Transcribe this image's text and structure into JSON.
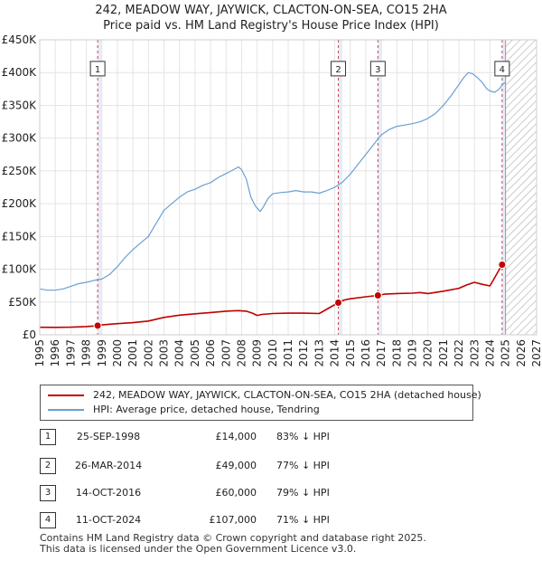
{
  "title_line1": "242, MEADOW WAY, JAYWICK, CLACTON-ON-SEA, CO15 2HA",
  "title_line2": "Price paid vs. HM Land Registry's House Price Index (HPI)",
  "chart_data": {
    "type": "line",
    "xlim": [
      1995,
      2027
    ],
    "ylim": [
      0,
      450000
    ],
    "y_ticks": [
      {
        "value": 0,
        "label": "£0"
      },
      {
        "value": 50000,
        "label": "£50K"
      },
      {
        "value": 100000,
        "label": "£100K"
      },
      {
        "value": 150000,
        "label": "£150K"
      },
      {
        "value": 200000,
        "label": "£200K"
      },
      {
        "value": 250000,
        "label": "£250K"
      },
      {
        "value": 300000,
        "label": "£300K"
      },
      {
        "value": 350000,
        "label": "£350K"
      },
      {
        "value": 400000,
        "label": "£400K"
      },
      {
        "value": 450000,
        "label": "£450K"
      }
    ],
    "x_ticks": [
      "1995",
      "1996",
      "1997",
      "1998",
      "1999",
      "2000",
      "2001",
      "2002",
      "2003",
      "2004",
      "2005",
      "2006",
      "2007",
      "2008",
      "2009",
      "2010",
      "2011",
      "2012",
      "2013",
      "2014",
      "2015",
      "2016",
      "2017",
      "2018",
      "2019",
      "2020",
      "2021",
      "2022",
      "2023",
      "2024",
      "2025",
      "2026",
      "2027"
    ],
    "forecast_start": 2025.0,
    "sale_highlight_ranges": [
      [
        1998.73,
        1999.0
      ],
      [
        2014.23,
        2014.5
      ],
      [
        2016.78,
        2017.05
      ],
      [
        2024.78,
        2025.05
      ]
    ],
    "series": [
      {
        "name": "HPI: Average price, detached house, Tendring",
        "color": "#6a9fd4",
        "x": [
          1995,
          1995.5,
          1996,
          1996.5,
          1997,
          1997.5,
          1998,
          1998.5,
          1999,
          1999.5,
          2000,
          2000.5,
          2001,
          2001.5,
          2002,
          2002.5,
          2003,
          2003.5,
          2004,
          2004.5,
          2005,
          2005.5,
          2006,
          2006.5,
          2007,
          2007.5,
          2007.8,
          2008,
          2008.3,
          2008.6,
          2008.9,
          2009.2,
          2009.4,
          2009.7,
          2010,
          2010.5,
          2011,
          2011.5,
          2012,
          2012.5,
          2013,
          2013.5,
          2014,
          2014.5,
          2015,
          2015.5,
          2016,
          2016.5,
          2017,
          2017.5,
          2018,
          2018.5,
          2019,
          2019.5,
          2020,
          2020.5,
          2021,
          2021.5,
          2022,
          2022.3,
          2022.6,
          2022.9,
          2023.2,
          2023.5,
          2023.8,
          2024,
          2024.3,
          2024.6,
          2024.8,
          2025
        ],
        "values": [
          70000,
          68000,
          68000,
          70000,
          74000,
          78000,
          80000,
          83000,
          85000,
          92000,
          104000,
          118000,
          130000,
          140000,
          150000,
          170000,
          190000,
          200000,
          210000,
          218000,
          222000,
          228000,
          232000,
          240000,
          246000,
          252000,
          256000,
          252000,
          238000,
          210000,
          196000,
          188000,
          195000,
          208000,
          215000,
          217000,
          218000,
          220000,
          218000,
          218000,
          216000,
          220000,
          225000,
          233000,
          245000,
          260000,
          275000,
          290000,
          305000,
          313000,
          318000,
          320000,
          322000,
          325000,
          330000,
          338000,
          350000,
          365000,
          382000,
          392000,
          400000,
          398000,
          392000,
          385000,
          375000,
          372000,
          370000,
          375000,
          382000,
          385000
        ]
      },
      {
        "name": "242, MEADOW WAY, JAYWICK, CLACTON-ON-SEA, CO15 2HA (detached house)",
        "color": "#c00000",
        "x": [
          1995,
          1996,
          1997,
          1998,
          1998.73,
          1999,
          2000,
          2001,
          2002,
          2003,
          2004,
          2005,
          2006,
          2007,
          2007.8,
          2008.3,
          2008.7,
          2009,
          2009.3,
          2010,
          2011,
          2012,
          2013,
          2014.23,
          2014.6,
          2015,
          2016,
          2016.78,
          2017.2,
          2018,
          2019,
          2019.5,
          2020,
          2021,
          2022,
          2022.5,
          2023,
          2023.5,
          2024,
          2024.78,
          2024.95,
          2025
        ],
        "values": [
          11500,
          11300,
          11600,
          12500,
          14000,
          15000,
          17000,
          18500,
          21000,
          26500,
          30000,
          32000,
          34000,
          36000,
          36800,
          36000,
          33000,
          29500,
          31000,
          32500,
          33000,
          33000,
          32500,
          49000,
          53000,
          55000,
          58000,
          60000,
          62000,
          63000,
          63500,
          64500,
          63000,
          66500,
          71000,
          76000,
          80000,
          77000,
          74500,
          107000,
          108000,
          109000
        ]
      }
    ],
    "sales": [
      {
        "label": "1",
        "x": 1998.73,
        "value": 14000
      },
      {
        "label": "2",
        "x": 2014.23,
        "value": 49000
      },
      {
        "label": "3",
        "x": 2016.78,
        "value": 60000
      },
      {
        "label": "4",
        "x": 2024.78,
        "value": 107000
      }
    ]
  },
  "legend": {
    "property_label": "242, MEADOW WAY, JAYWICK, CLACTON-ON-SEA, CO15 2HA (detached house)",
    "hpi_label": "HPI: Average price, detached house, Tendring"
  },
  "transactions": [
    {
      "num": "1",
      "date": "25-SEP-1998",
      "price": "£14,000",
      "hpi": "83% ↓ HPI"
    },
    {
      "num": "2",
      "date": "26-MAR-2014",
      "price": "£49,000",
      "hpi": "77% ↓ HPI"
    },
    {
      "num": "3",
      "date": "14-OCT-2016",
      "price": "£60,000",
      "hpi": "79% ↓ HPI"
    },
    {
      "num": "4",
      "date": "11-OCT-2024",
      "price": "£107,000",
      "hpi": "71% ↓ HPI"
    }
  ],
  "footer_line1": "Contains HM Land Registry data © Crown copyright and database right 2025.",
  "footer_line2": "This data is licensed under the Open Government Licence v3.0."
}
